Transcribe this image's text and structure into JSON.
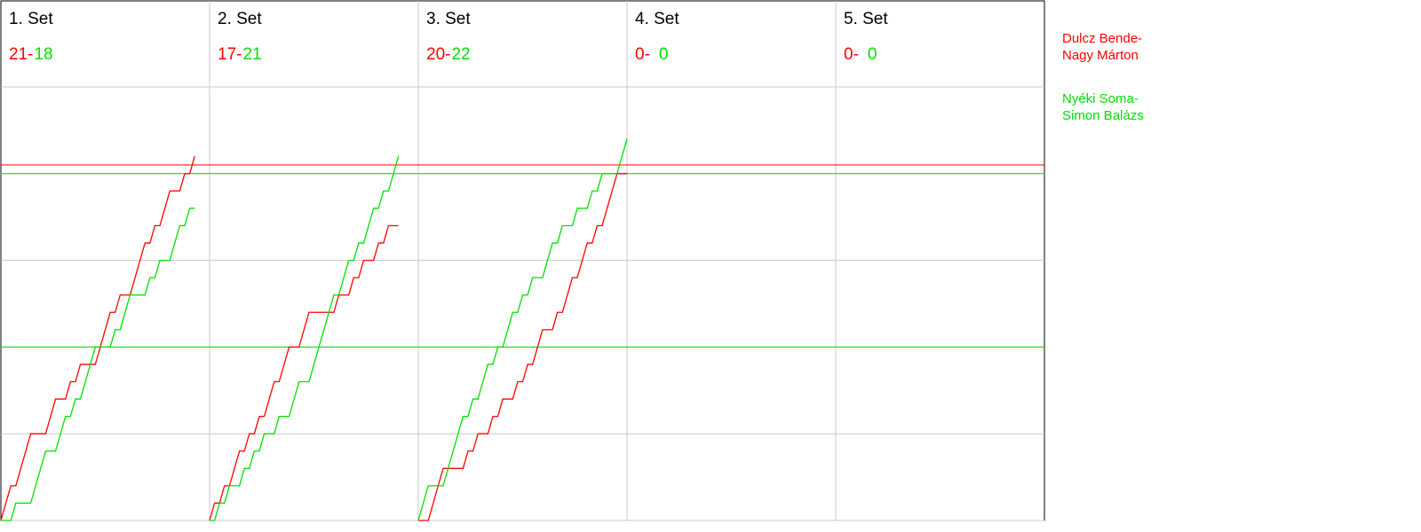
{
  "chart_data": {
    "type": "line",
    "xlim": [
      0,
      42
    ],
    "ylim": [
      0,
      25
    ],
    "yticks": [
      0,
      5,
      10,
      15,
      20,
      25
    ],
    "grid": true,
    "teams": [
      {
        "name": [
          "Dulcz Bende-",
          "Nagy  Márton"
        ],
        "color": "#ff0000"
      },
      {
        "name": [
          "Nyéki Soma-",
          "Simon Balázs"
        ],
        "color": "#00e000"
      }
    ],
    "reference_lines": [
      {
        "value": 20.5,
        "color": "#ff0000"
      },
      {
        "value": 20,
        "color": "#00e000"
      },
      {
        "value": 10,
        "color": "#00e000"
      }
    ],
    "sets": [
      {
        "title": "1. Set",
        "score": [
          21,
          18
        ],
        "value_labels": [
          "21-",
          "18"
        ],
        "series": [
          {
            "values": [
              0,
              1,
              2,
              2,
              3,
              4,
              5,
              5,
              5,
              5,
              6,
              7,
              7,
              7,
              8,
              8,
              9,
              9,
              9,
              9,
              10,
              11,
              12,
              12,
              13,
              13,
              13,
              14,
              15,
              16,
              16,
              17,
              17,
              18,
              19,
              19,
              19,
              20,
              20,
              21
            ]
          },
          {
            "values": [
              0,
              0,
              0,
              1,
              1,
              1,
              1,
              2,
              3,
              4,
              4,
              4,
              5,
              6,
              6,
              7,
              7,
              8,
              9,
              10,
              10,
              10,
              10,
              11,
              11,
              12,
              13,
              13,
              13,
              13,
              14,
              14,
              15,
              15,
              15,
              16,
              17,
              17,
              18,
              18
            ]
          }
        ]
      },
      {
        "title": "2. Set",
        "score": [
          17,
          21
        ],
        "value_labels": [
          "17-",
          "21"
        ],
        "series": [
          {
            "values": [
              0,
              1,
              1,
              2,
              2,
              3,
              4,
              4,
              5,
              5,
              6,
              6,
              7,
              8,
              8,
              9,
              10,
              10,
              10,
              11,
              12,
              12,
              12,
              12,
              12,
              12,
              13,
              13,
              13,
              14,
              14,
              15,
              15,
              15,
              16,
              16,
              17,
              17,
              17
            ]
          },
          {
            "values": [
              0,
              0,
              1,
              1,
              2,
              2,
              2,
              3,
              3,
              4,
              4,
              5,
              5,
              5,
              6,
              6,
              6,
              7,
              8,
              8,
              8,
              9,
              10,
              11,
              12,
              13,
              13,
              14,
              15,
              15,
              16,
              16,
              17,
              18,
              18,
              19,
              19,
              20,
              21
            ]
          }
        ]
      },
      {
        "title": "3. Set",
        "score": [
          20,
          22
        ],
        "value_labels": [
          "20-",
          "22"
        ],
        "series": [
          {
            "values": [
              0,
              0,
              0,
              1,
              2,
              3,
              3,
              3,
              3,
              3,
              4,
              4,
              5,
              5,
              5,
              6,
              6,
              7,
              7,
              7,
              8,
              8,
              9,
              9,
              10,
              11,
              11,
              11,
              12,
              12,
              13,
              14,
              14,
              15,
              16,
              16,
              17,
              17,
              18,
              19,
              20,
              20,
              20
            ]
          },
          {
            "values": [
              0,
              1,
              2,
              2,
              2,
              2,
              3,
              4,
              5,
              6,
              6,
              7,
              7,
              8,
              9,
              9,
              10,
              10,
              11,
              12,
              12,
              13,
              13,
              14,
              14,
              14,
              15,
              16,
              16,
              17,
              17,
              17,
              18,
              18,
              18,
              19,
              19,
              20,
              20,
              20,
              20,
              21,
              22
            ]
          }
        ]
      },
      {
        "title": "4. Set",
        "score": [
          0,
          0
        ],
        "value_labels": [
          "0-",
          "0"
        ],
        "series": [
          {
            "values": [
              0
            ]
          },
          {
            "values": [
              0
            ]
          }
        ]
      },
      {
        "title": "5. Set",
        "score": [
          0,
          0
        ],
        "value_labels": [
          "0-",
          "0"
        ],
        "series": [
          {
            "values": [
              0
            ]
          },
          {
            "values": [
              0
            ]
          }
        ]
      }
    ]
  }
}
